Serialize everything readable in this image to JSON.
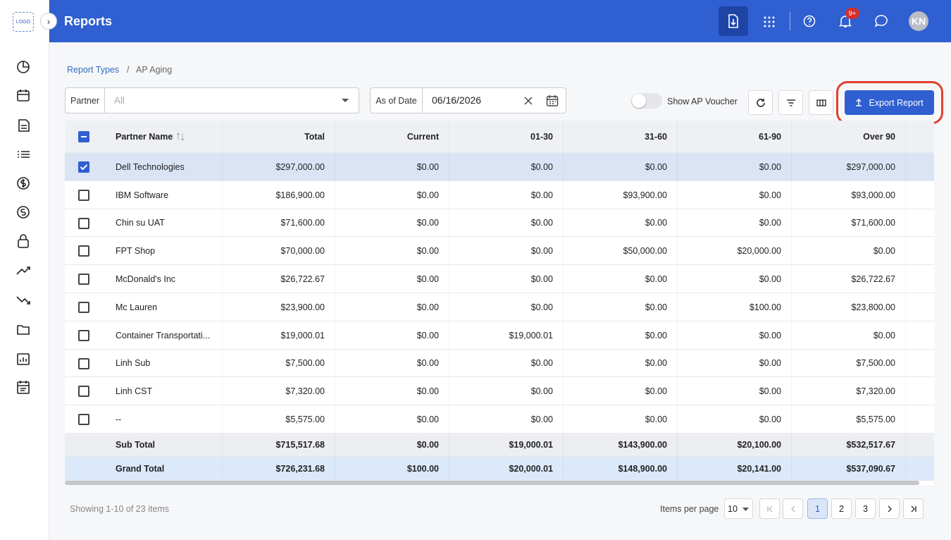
{
  "sidebar": {
    "logo": "LOGO"
  },
  "header": {
    "title": "Reports",
    "badge": "9+",
    "avatar": "KN"
  },
  "breadcrumb": {
    "parent": "Report Types",
    "current": "AP Aging"
  },
  "filters": {
    "partner_label": "Partner",
    "partner_value": "All",
    "date_label": "As of Date",
    "date_value": "06/16/2026",
    "toggle_label": "Show AP Voucher",
    "export": "Export Report"
  },
  "table": {
    "columns": [
      "Partner Name",
      "Total",
      "Current",
      "01-30",
      "31-60",
      "61-90",
      "Over 90"
    ],
    "rows": [
      [
        "Dell Technologies",
        "$297,000.00",
        "$0.00",
        "$0.00",
        "$0.00",
        "$0.00",
        "$297,000.00"
      ],
      [
        "IBM Software",
        "$186,900.00",
        "$0.00",
        "$0.00",
        "$93,900.00",
        "$0.00",
        "$93,000.00"
      ],
      [
        "Chin su UAT",
        "$71,600.00",
        "$0.00",
        "$0.00",
        "$0.00",
        "$0.00",
        "$71,600.00"
      ],
      [
        "FPT Shop",
        "$70,000.00",
        "$0.00",
        "$0.00",
        "$50,000.00",
        "$20,000.00",
        "$0.00"
      ],
      [
        "McDonald's Inc",
        "$26,722.67",
        "$0.00",
        "$0.00",
        "$0.00",
        "$0.00",
        "$26,722.67"
      ],
      [
        "Mc Lauren",
        "$23,900.00",
        "$0.00",
        "$0.00",
        "$0.00",
        "$100.00",
        "$23,800.00"
      ],
      [
        "Container Transportati...",
        "$19,000.01",
        "$0.00",
        "$19,000.01",
        "$0.00",
        "$0.00",
        "$0.00"
      ],
      [
        "Linh Sub",
        "$7,500.00",
        "$0.00",
        "$0.00",
        "$0.00",
        "$0.00",
        "$7,500.00"
      ],
      [
        "Linh CST",
        "$7,320.00",
        "$0.00",
        "$0.00",
        "$0.00",
        "$0.00",
        "$7,320.00"
      ],
      [
        "--",
        "$5,575.00",
        "$0.00",
        "$0.00",
        "$0.00",
        "$0.00",
        "$5,575.00"
      ]
    ],
    "subtotal": [
      "Sub Total",
      "$715,517.68",
      "$0.00",
      "$19,000.01",
      "$143,900.00",
      "$20,100.00",
      "$532,517.67"
    ],
    "grandtotal": [
      "Grand Total",
      "$726,231.68",
      "$100.00",
      "$20,000.01",
      "$148,900.00",
      "$20,141.00",
      "$537,090.67"
    ]
  },
  "footer": {
    "showing": "Showing 1-10 of 23 items",
    "per_page_label": "Items per page",
    "per_page": "10",
    "pages": [
      "1",
      "2",
      "3"
    ]
  }
}
